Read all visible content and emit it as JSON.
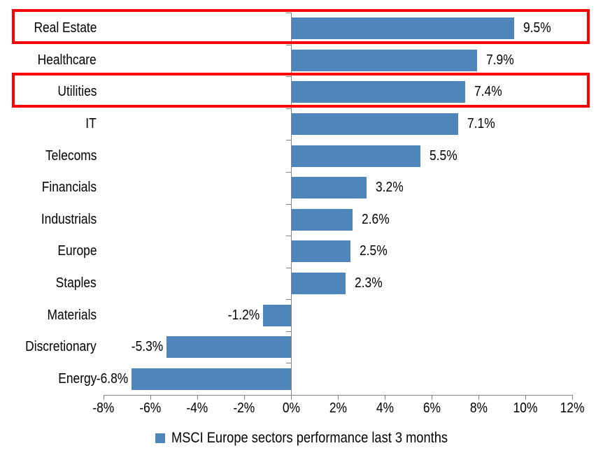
{
  "chart_data": {
    "type": "bar",
    "orientation": "horizontal",
    "title": "",
    "categories": [
      "Real Estate",
      "Healthcare",
      "Utilities",
      "IT",
      "Telecoms",
      "Financials",
      "Industrials",
      "Europe",
      "Staples",
      "Materials",
      "Discretionary",
      "Energy"
    ],
    "values": [
      9.5,
      7.9,
      7.4,
      7.1,
      5.5,
      3.2,
      2.6,
      2.5,
      2.3,
      -1.2,
      -5.3,
      -6.8
    ],
    "data_labels": [
      "9.5%",
      "7.9%",
      "7.4%",
      "7.1%",
      "5.5%",
      "3.2%",
      "2.6%",
      "2.5%",
      "2.3%",
      "-1.2%",
      "-5.3%",
      "-6.8%"
    ],
    "x_tick_labels": [
      "-8%",
      "-6%",
      "-4%",
      "-2%",
      "0%",
      "2%",
      "4%",
      "6%",
      "8%",
      "10%",
      "12%"
    ],
    "x_tick_values": [
      -8,
      -6,
      -4,
      -2,
      0,
      2,
      4,
      6,
      8,
      10,
      12
    ],
    "xlim": [
      -8,
      12
    ],
    "grid": false,
    "bar_color": "#4e86bc",
    "axis_color": "#848484",
    "highlighted_categories": [
      "Real Estate",
      "Utilities"
    ],
    "highlight_color": "#fe0000",
    "legend_position": "bottom"
  },
  "legend": {
    "label": "MSCI Europe sectors performance last 3 months",
    "marker_color": "#4e86bc"
  }
}
